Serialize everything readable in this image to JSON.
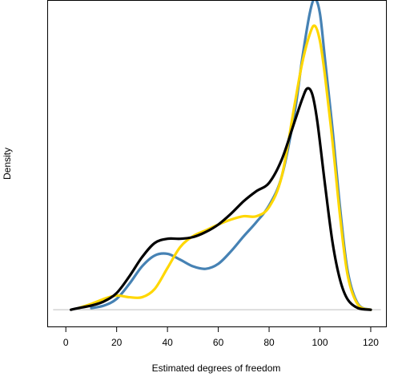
{
  "chart_data": {
    "type": "line",
    "title": "",
    "xlabel": "Estimated degrees of freedom",
    "ylabel": "Density",
    "xlim": [
      -7,
      126
    ],
    "ylim": [
      -0.002,
      0.037
    ],
    "x_ticks": [
      0,
      20,
      40,
      60,
      80,
      100,
      120
    ],
    "x_tick_labels": [
      "0",
      "20",
      "40",
      "60",
      "80",
      "100",
      "120"
    ],
    "y_axis_shown": false,
    "baseline": 0,
    "grid": false,
    "legend": "none",
    "series": [
      {
        "color": "#4682b4",
        "x": [
          10,
          15,
          20,
          25,
          30,
          35,
          40,
          45,
          50,
          55,
          60,
          65,
          70,
          75,
          80,
          85,
          90,
          93,
          96,
          98,
          100,
          102,
          105,
          108,
          111,
          115,
          120
        ],
        "y": [
          0.0002,
          0.0005,
          0.0013,
          0.0031,
          0.0052,
          0.0065,
          0.0067,
          0.006,
          0.0052,
          0.0049,
          0.0055,
          0.007,
          0.0088,
          0.0105,
          0.0125,
          0.016,
          0.0235,
          0.03,
          0.0355,
          0.0372,
          0.0355,
          0.03,
          0.0215,
          0.012,
          0.0045,
          0.0007,
          0
        ]
      },
      {
        "color": "#ffd700",
        "x": [
          5,
          10,
          15,
          20,
          25,
          30,
          35,
          40,
          45,
          50,
          55,
          60,
          65,
          70,
          75,
          80,
          85,
          90,
          93,
          96,
          98,
          100,
          102,
          105,
          108,
          111,
          115,
          120
        ],
        "y": [
          0.0002,
          0.0007,
          0.0013,
          0.0017,
          0.0015,
          0.0015,
          0.0025,
          0.005,
          0.0075,
          0.0088,
          0.0095,
          0.0102,
          0.0108,
          0.0112,
          0.0112,
          0.0123,
          0.016,
          0.0245,
          0.0295,
          0.033,
          0.034,
          0.0322,
          0.028,
          0.02,
          0.011,
          0.004,
          0.0006,
          0
        ]
      },
      {
        "color": "#000000",
        "x": [
          2,
          5,
          10,
          15,
          20,
          25,
          30,
          35,
          40,
          45,
          50,
          55,
          60,
          65,
          70,
          75,
          80,
          85,
          90,
          93,
          95,
          97,
          99,
          102,
          105,
          108,
          111,
          115,
          120
        ],
        "y": [
          0,
          0.0002,
          0.0005,
          0.001,
          0.002,
          0.004,
          0.0063,
          0.008,
          0.0085,
          0.0085,
          0.0087,
          0.0093,
          0.0102,
          0.0115,
          0.013,
          0.0142,
          0.0152,
          0.018,
          0.0225,
          0.0252,
          0.0265,
          0.0258,
          0.0225,
          0.015,
          0.008,
          0.0035,
          0.0012,
          0.0002,
          0
        ]
      }
    ]
  }
}
